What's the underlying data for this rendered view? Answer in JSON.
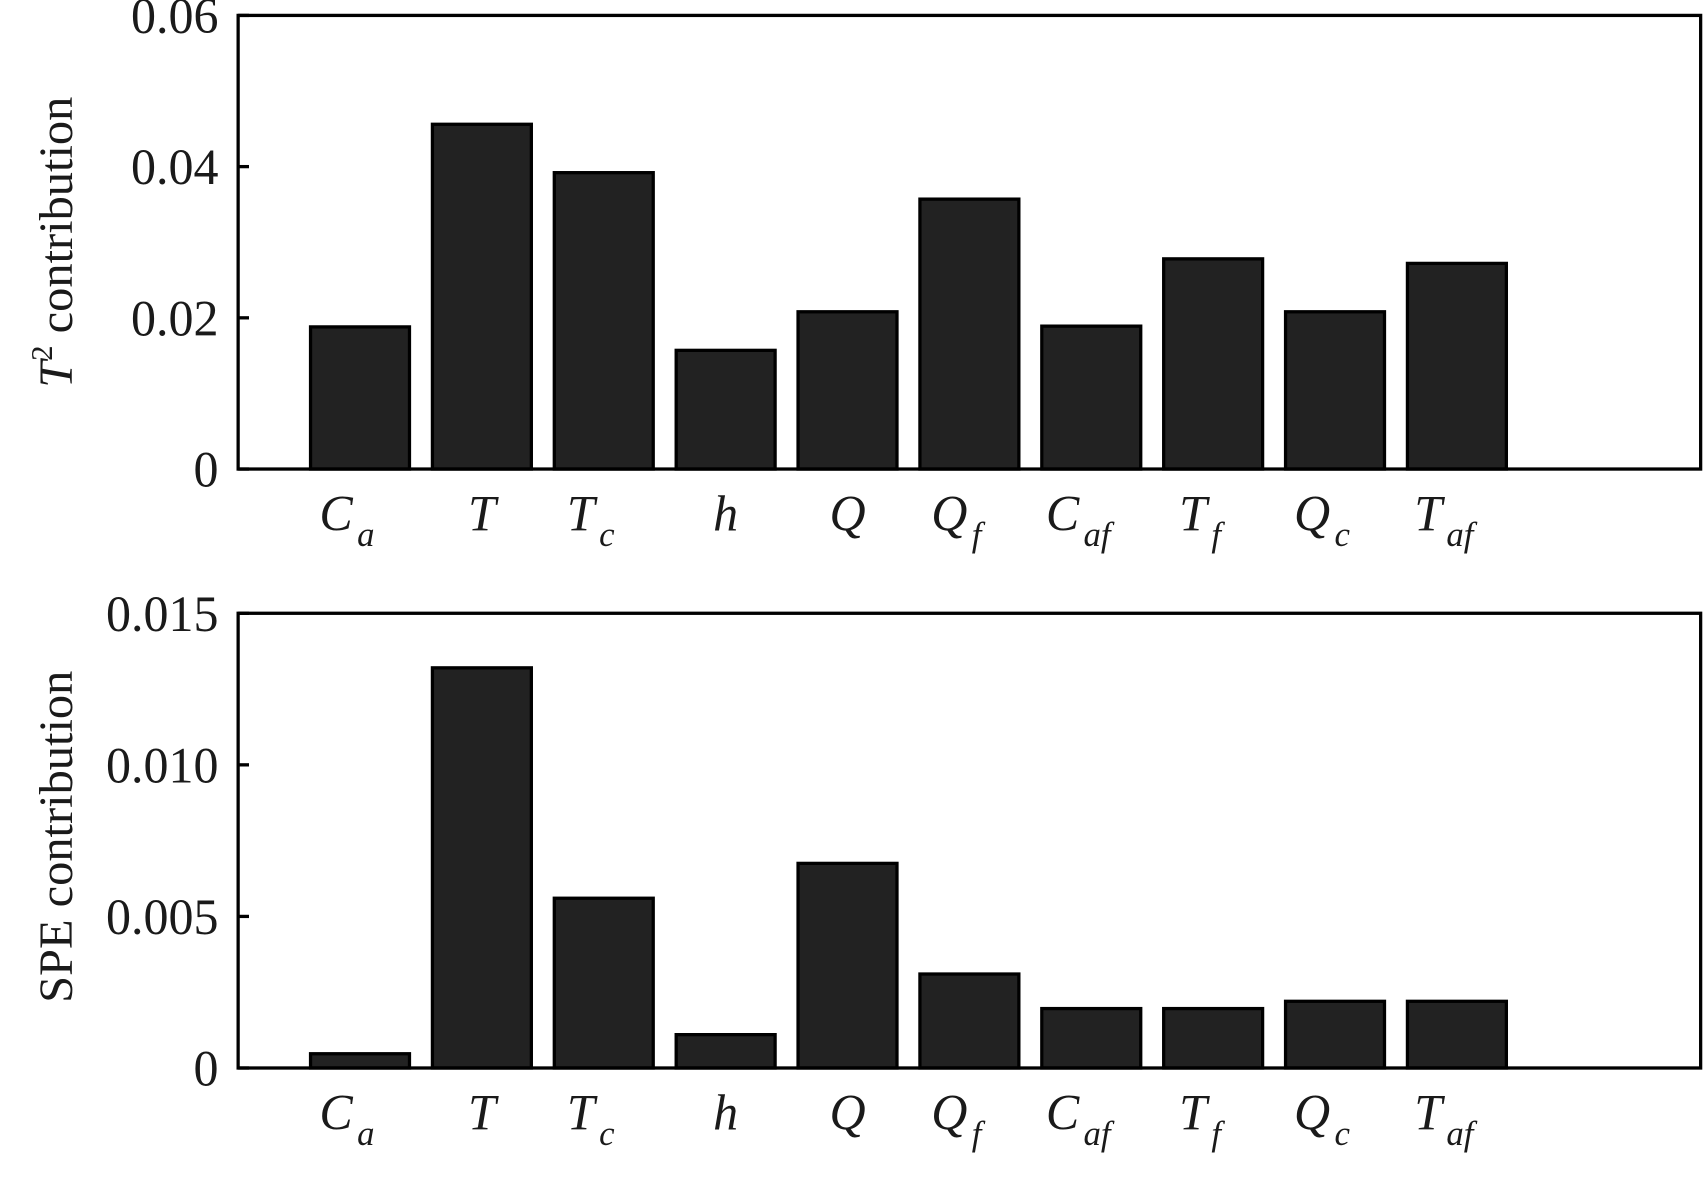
{
  "chart_data": [
    {
      "type": "bar",
      "categories": [
        {
          "main": "C",
          "sub": "a"
        },
        {
          "main": "T",
          "sub": ""
        },
        {
          "main": "T",
          "sub": "c"
        },
        {
          "main": "h",
          "sub": ""
        },
        {
          "main": "Q",
          "sub": ""
        },
        {
          "main": "Q",
          "sub": "f"
        },
        {
          "main": "C",
          "sub": "af"
        },
        {
          "main": "T",
          "sub": "f"
        },
        {
          "main": "Q",
          "sub": "c"
        },
        {
          "main": "T",
          "sub": "af"
        }
      ],
      "values": [
        0.0188,
        0.0456,
        0.0392,
        0.0157,
        0.0208,
        0.0357,
        0.0189,
        0.0278,
        0.0208,
        0.0272
      ],
      "ylabel_main": "T",
      "ylabel_sup": "2",
      "ylabel_rest": " contribution",
      "ylim": [
        0,
        0.06
      ],
      "xlim": [
        0,
        12
      ],
      "yticks": [
        "0",
        "0.02",
        "0.04",
        "0.06"
      ],
      "ytick_values": [
        0,
        0.02,
        0.04,
        0.06
      ],
      "grid": false,
      "bar_color": "#222222"
    },
    {
      "type": "bar",
      "categories": [
        {
          "main": "C",
          "sub": "a"
        },
        {
          "main": "T",
          "sub": ""
        },
        {
          "main": "T",
          "sub": "c"
        },
        {
          "main": "h",
          "sub": ""
        },
        {
          "main": "Q",
          "sub": ""
        },
        {
          "main": "Q",
          "sub": "f"
        },
        {
          "main": "C",
          "sub": "af"
        },
        {
          "main": "T",
          "sub": "f"
        },
        {
          "main": "Q",
          "sub": "c"
        },
        {
          "main": "T",
          "sub": "af"
        }
      ],
      "values": [
        0.00047,
        0.0132,
        0.0056,
        0.0011,
        0.00675,
        0.0031,
        0.00196,
        0.00196,
        0.0022,
        0.0022
      ],
      "ylabel_main": "SPE",
      "ylabel_sup": "",
      "ylabel_rest": "  contribution",
      "ylim": [
        0,
        0.015
      ],
      "xlim": [
        0,
        12
      ],
      "yticks": [
        "0",
        "0.005",
        "0.010",
        "0.015"
      ],
      "ytick_values": [
        0,
        0.005,
        0.01,
        0.015
      ],
      "grid": false,
      "bar_color": "#222222"
    }
  ]
}
